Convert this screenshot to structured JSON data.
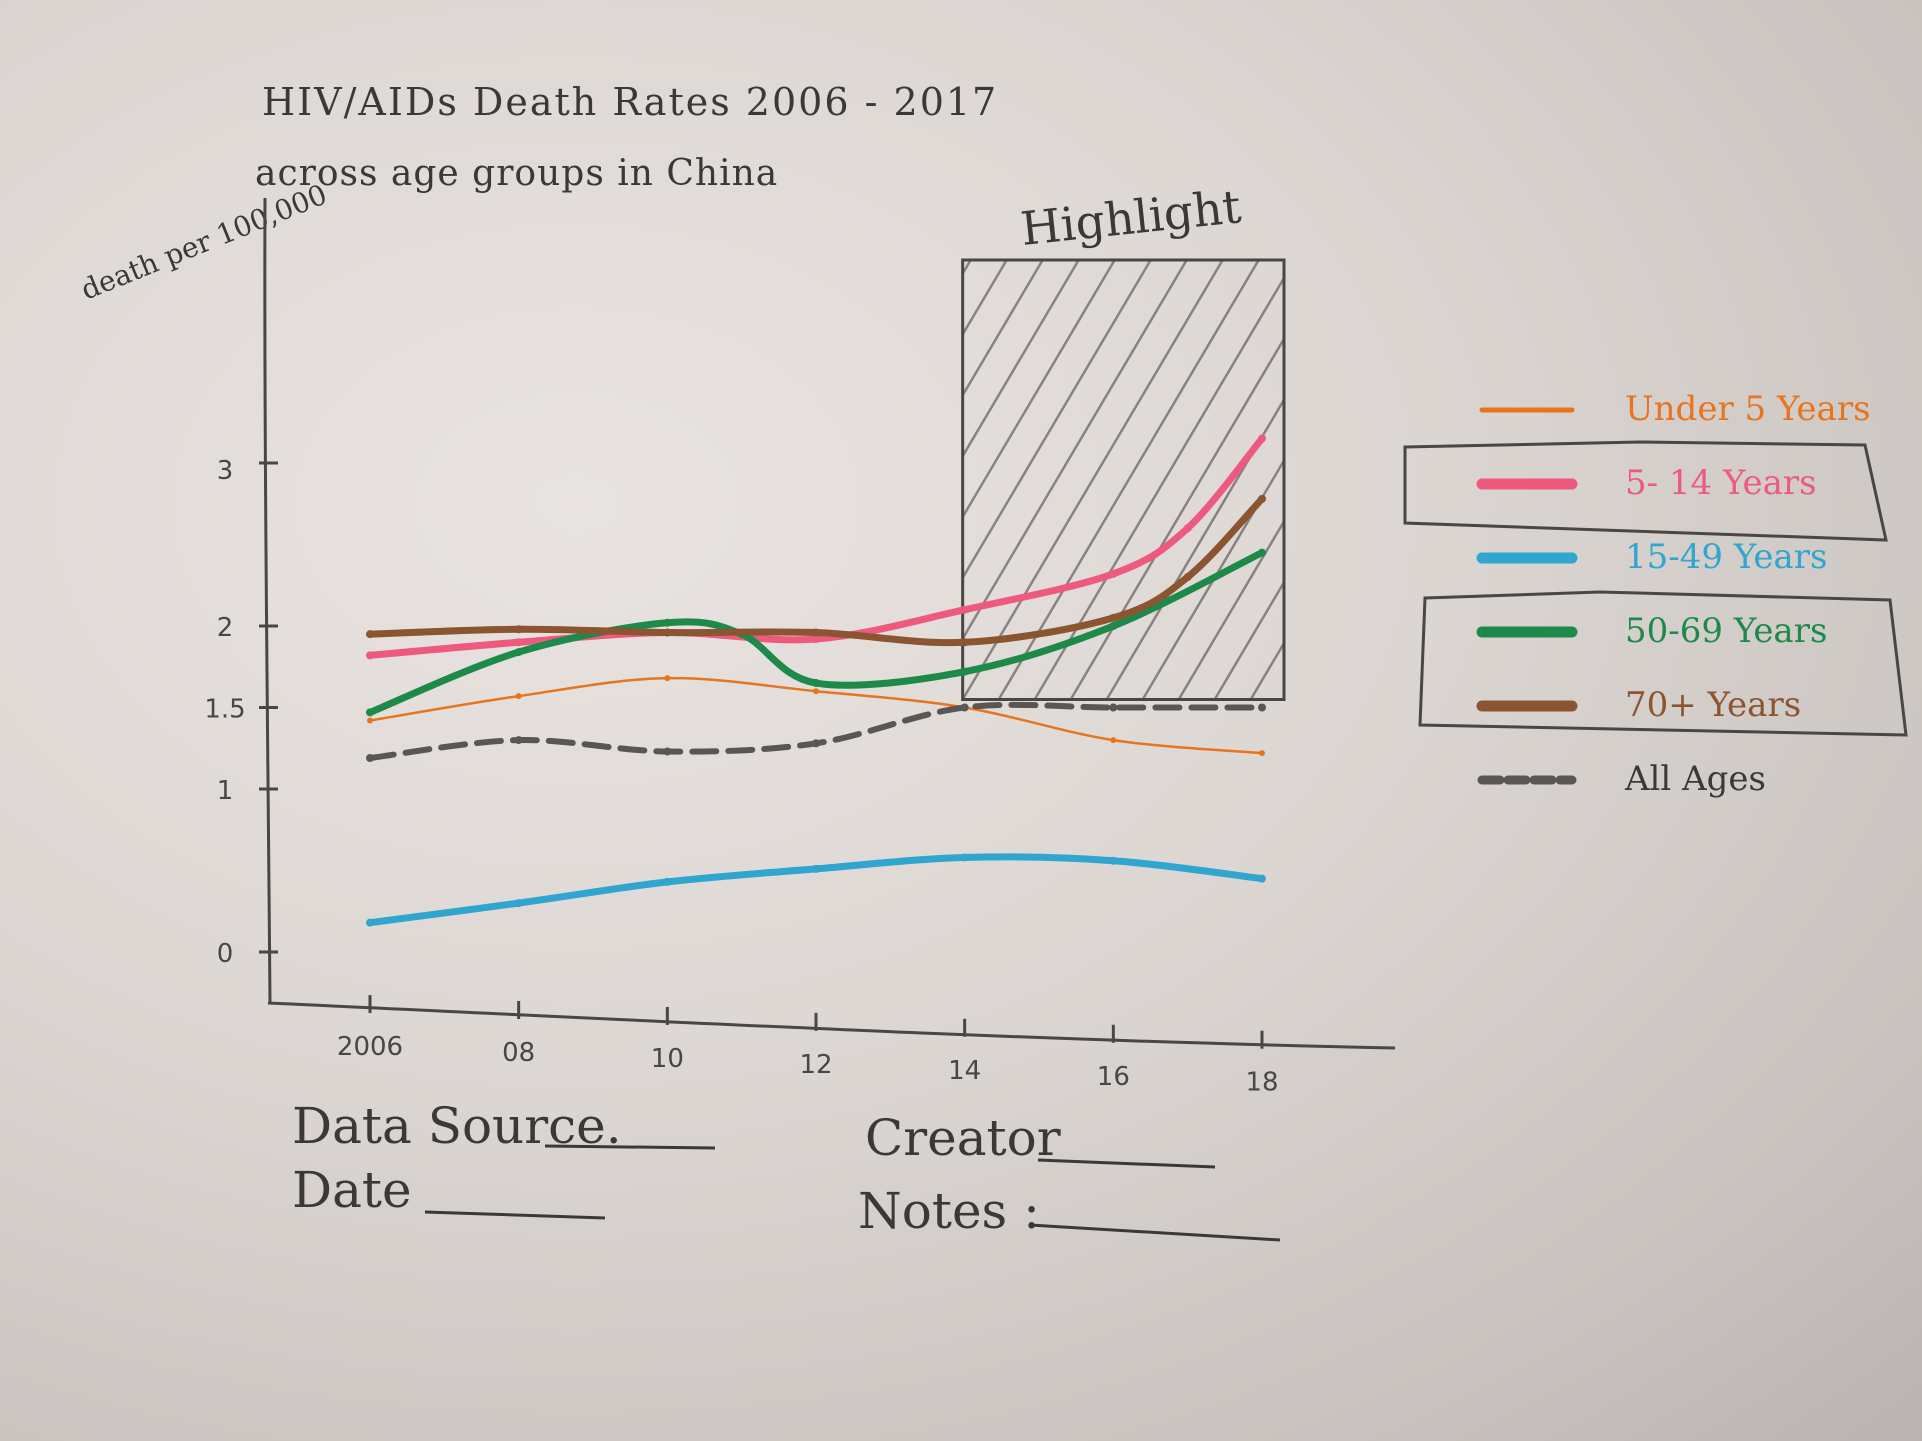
{
  "chart_data": {
    "type": "line",
    "title": "HIV/AIDs Death Rates 2006 - 2017",
    "subtitle": "across age groups in China",
    "ylabel": "death per 100,000",
    "xlabel": "",
    "x": [
      2006,
      2008,
      2010,
      2012,
      2014,
      2016,
      2018
    ],
    "x_tick_labels": [
      "2006",
      "08",
      "10",
      "12",
      "14",
      "16",
      "18"
    ],
    "y_ticks": [
      0,
      1,
      1.5,
      2,
      3
    ],
    "y_tick_labels": [
      "0",
      "1",
      "1.5",
      "2",
      "3"
    ],
    "ylim": [
      0,
      3.4
    ],
    "xlim": [
      2006,
      2018
    ],
    "grid": false,
    "legend_position": "right",
    "highlight": {
      "label": "Highlight",
      "x_start": 2014,
      "x_end": 2018
    },
    "series": [
      {
        "name": "Under 5 Years",
        "color": "#e8741e",
        "style": "thin",
        "points": [
          [
            2006,
            1.42
          ],
          [
            2008,
            1.57
          ],
          [
            2010,
            1.68
          ],
          [
            2012,
            1.6
          ],
          [
            2014,
            1.5
          ],
          [
            2016,
            1.3
          ],
          [
            2018,
            1.22
          ]
        ]
      },
      {
        "name": "5- 14 Years",
        "color": "#ee5a7e",
        "style": "thick",
        "points": [
          [
            2006,
            1.82
          ],
          [
            2008,
            1.9
          ],
          [
            2010,
            1.96
          ],
          [
            2012,
            1.92
          ],
          [
            2014,
            2.1
          ],
          [
            2016,
            2.32
          ],
          [
            2017,
            2.6
          ],
          [
            2018,
            3.15
          ]
        ]
      },
      {
        "name": "15-49 Years",
        "color": "#2fa5d0",
        "style": "thick",
        "points": [
          [
            2006,
            0.18
          ],
          [
            2008,
            0.3
          ],
          [
            2010,
            0.43
          ],
          [
            2012,
            0.51
          ],
          [
            2014,
            0.58
          ],
          [
            2016,
            0.56
          ],
          [
            2018,
            0.45
          ]
        ]
      },
      {
        "name": "50-69 Years",
        "color": "#1e8a4a",
        "style": "thick",
        "points": [
          [
            2006,
            1.47
          ],
          [
            2008,
            1.84
          ],
          [
            2010,
            2.02
          ],
          [
            2011,
            1.95
          ],
          [
            2012,
            1.65
          ],
          [
            2014,
            1.72
          ],
          [
            2016,
            2.0
          ],
          [
            2018,
            2.45
          ]
        ]
      },
      {
        "name": "70+ Years",
        "color": "#8a5530",
        "style": "thick",
        "points": [
          [
            2006,
            1.95
          ],
          [
            2008,
            1.98
          ],
          [
            2010,
            1.96
          ],
          [
            2012,
            1.96
          ],
          [
            2014,
            1.9
          ],
          [
            2016,
            2.05
          ],
          [
            2017,
            2.3
          ],
          [
            2018,
            2.78
          ]
        ]
      },
      {
        "name": "All Ages",
        "color": "#5a5654",
        "style": "dashed",
        "points": [
          [
            2006,
            1.19
          ],
          [
            2008,
            1.3
          ],
          [
            2010,
            1.23
          ],
          [
            2012,
            1.28
          ],
          [
            2014,
            1.5
          ],
          [
            2016,
            1.5
          ],
          [
            2018,
            1.5
          ]
        ]
      }
    ]
  },
  "footer": {
    "data_source_label": "Data Source.",
    "date_label": "Date",
    "creator_label": "Creator",
    "notes_label": "Notes :"
  }
}
